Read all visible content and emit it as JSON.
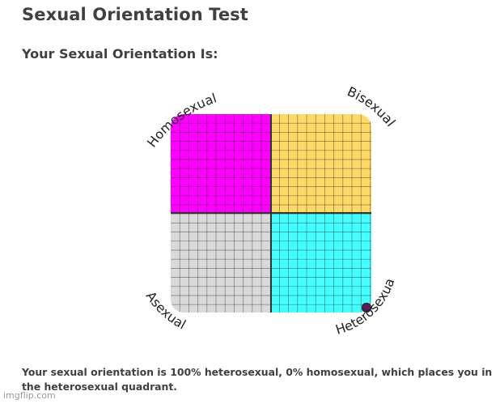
{
  "page": {
    "title": "Sexual Orientation Test",
    "subtitle": "Your Sexual Orientation Is:",
    "result_text": "Your sexual orientation is 100% heterosexual, 0% homosexual, which places you in the heterosexual quadrant.",
    "watermark": "imgflip.com"
  },
  "chart_data": {
    "type": "scatter",
    "quadrants": [
      {
        "name": "Homosexual",
        "position": "top-left",
        "color": "#ff00ff"
      },
      {
        "name": "Bisexual",
        "position": "top-right",
        "color": "#ffd966"
      },
      {
        "name": "Asexual",
        "position": "bottom-left",
        "color": "#d9d9d9"
      },
      {
        "name": "Heterosexual",
        "position": "bottom-right",
        "color": "#44ffff"
      }
    ],
    "grid": true,
    "point": {
      "heterosexual_percent": 100,
      "homosexual_percent": 0,
      "color": "#5b1a5b"
    }
  }
}
